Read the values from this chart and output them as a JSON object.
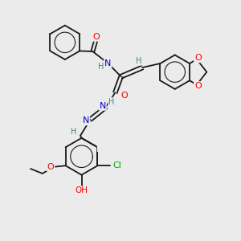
{
  "background_color": "#ebebeb",
  "bond_color": "#1a1a1a",
  "atom_colors": {
    "O": "#ff0000",
    "N": "#0000cc",
    "Cl": "#00aa00",
    "H": "#4d8080"
  },
  "figsize": [
    3.0,
    3.0
  ],
  "dpi": 100
}
